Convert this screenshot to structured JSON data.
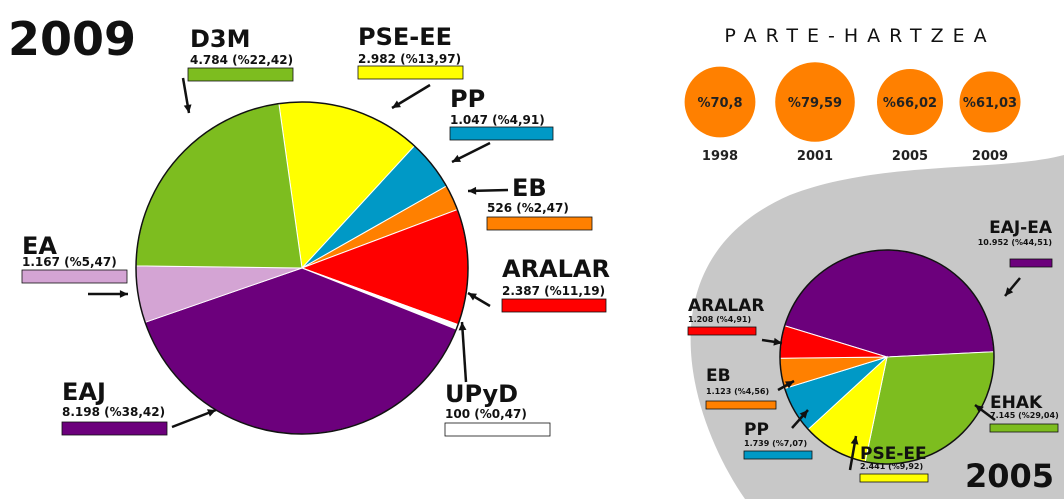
{
  "chart_data": [
    {
      "type": "pie",
      "title": "2009",
      "categories": [
        "PSE-EE",
        "PP",
        "EB",
        "ARALAR",
        "UPyD",
        "EAJ",
        "EA",
        "D3M"
      ],
      "values": [
        13.97,
        4.91,
        2.47,
        11.19,
        0.47,
        38.42,
        5.47,
        22.42
      ],
      "value_labels": [
        "2.982 (%13,97)",
        "1.047 (%4,91)",
        "526 (%2,47)",
        "2.387 (%11,19)",
        "100 (%0,47)",
        "8.198 (%38,42)",
        "1.167 (%5,47)",
        "4.784 (%22,42)"
      ],
      "colors": [
        "#ffff00",
        "#0099c6",
        "#ff8000",
        "#ff0000",
        "#ffffff",
        "#6c007c",
        "#d4a4d4",
        "#7dbd1f"
      ]
    },
    {
      "type": "pie",
      "title": "2005",
      "categories": [
        "EAJ-EA",
        "EHAK",
        "PSE-EE",
        "PP",
        "EB",
        "ARALAR"
      ],
      "values": [
        44.51,
        29.04,
        9.92,
        7.07,
        4.56,
        4.91
      ],
      "value_labels": [
        "10.952 (%44,51)",
        "7.145 (%29,04)",
        "2.441 (%9,92)",
        "1.739 (%7,07)",
        "1.123 (%4,56)",
        "1.208 (%4,91)"
      ],
      "colors": [
        "#6c007c",
        "#7dbd1f",
        "#ffff00",
        "#0099c6",
        "#ff8000",
        "#ff0000"
      ]
    },
    {
      "type": "bubble",
      "title": "PARTE-HARTZEA",
      "categories": [
        "1998",
        "2001",
        "2005",
        "2009"
      ],
      "values": [
        70.8,
        79.59,
        66.02,
        61.03
      ],
      "value_labels": [
        "%70,8",
        "%79,59",
        "%66,02",
        "%61,03"
      ],
      "color": "#ff8000"
    }
  ]
}
